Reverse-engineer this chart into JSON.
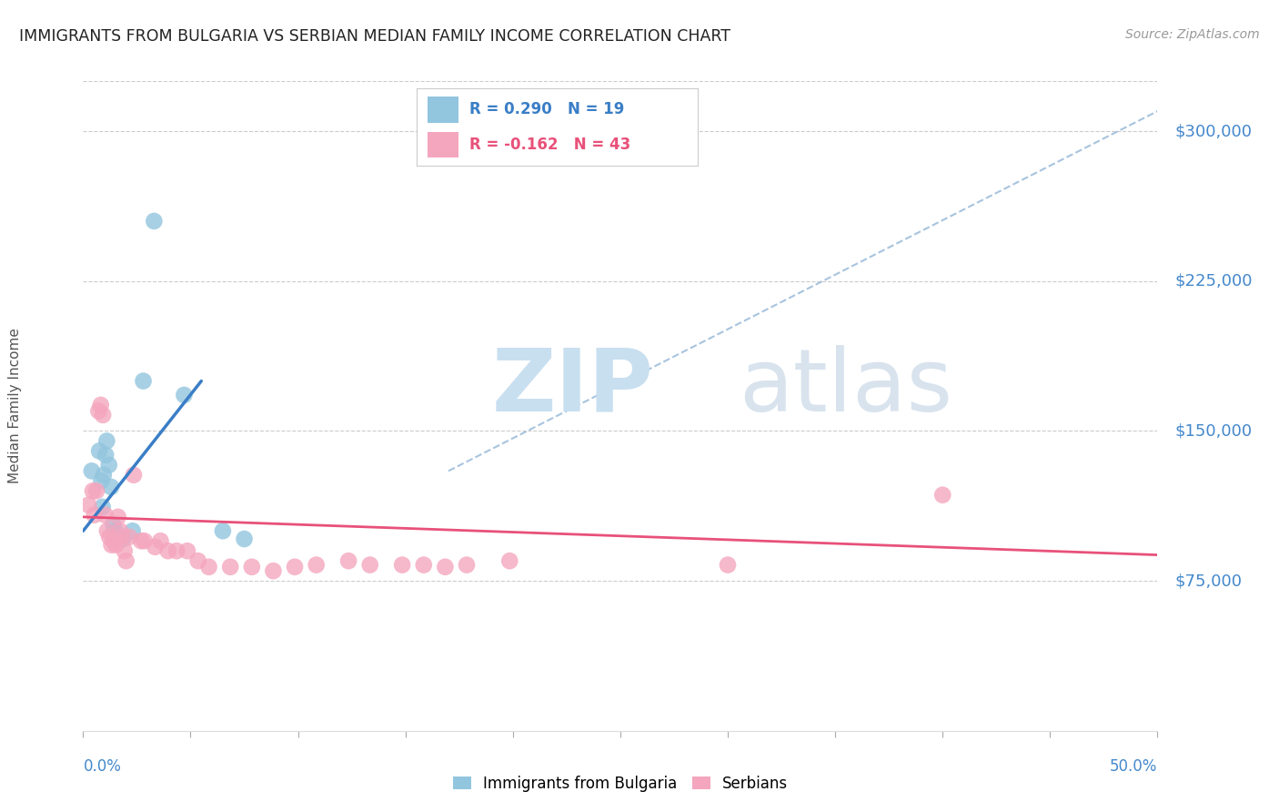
{
  "title": "IMMIGRANTS FROM BULGARIA VS SERBIAN MEDIAN FAMILY INCOME CORRELATION CHART",
  "source": "Source: ZipAtlas.com",
  "ylabel": "Median Family Income",
  "yticks": [
    75000,
    150000,
    225000,
    300000
  ],
  "ytick_labels": [
    "$75,000",
    "$150,000",
    "$225,000",
    "$300,000"
  ],
  "xmin": 0.0,
  "xmax": 50.0,
  "ymin": 0,
  "ymax": 325000,
  "blue_color": "#92c5de",
  "pink_color": "#f4a6be",
  "blue_trend_color": "#3a7ec6",
  "pink_trend_color": "#e8517a",
  "dash_color": "#a8c4de",
  "blue_scatter": [
    [
      0.4,
      130000
    ],
    [
      0.75,
      140000
    ],
    [
      0.85,
      125000
    ],
    [
      0.95,
      128000
    ],
    [
      1.05,
      138000
    ],
    [
      1.1,
      145000
    ],
    [
      1.2,
      133000
    ],
    [
      1.4,
      103000
    ],
    [
      1.5,
      100000
    ],
    [
      1.65,
      97000
    ],
    [
      1.85,
      96000
    ],
    [
      2.3,
      100000
    ],
    [
      2.8,
      175000
    ],
    [
      4.7,
      168000
    ],
    [
      3.3,
      255000
    ],
    [
      6.5,
      100000
    ],
    [
      7.5,
      96000
    ],
    [
      0.9,
      112000
    ],
    [
      1.3,
      122000
    ]
  ],
  "pink_scatter": [
    [
      0.25,
      113000
    ],
    [
      0.45,
      120000
    ],
    [
      0.52,
      108000
    ],
    [
      0.62,
      120000
    ],
    [
      0.72,
      160000
    ],
    [
      0.82,
      163000
    ],
    [
      0.92,
      158000
    ],
    [
      1.02,
      108000
    ],
    [
      1.12,
      100000
    ],
    [
      1.22,
      97000
    ],
    [
      1.32,
      93000
    ],
    [
      1.42,
      95000
    ],
    [
      1.52,
      93000
    ],
    [
      1.62,
      107000
    ],
    [
      1.72,
      100000
    ],
    [
      1.82,
      97000
    ],
    [
      1.92,
      90000
    ],
    [
      2.0,
      85000
    ],
    [
      2.15,
      97000
    ],
    [
      2.35,
      128000
    ],
    [
      2.7,
      95000
    ],
    [
      2.85,
      95000
    ],
    [
      3.35,
      92000
    ],
    [
      3.6,
      95000
    ],
    [
      3.95,
      90000
    ],
    [
      4.35,
      90000
    ],
    [
      4.85,
      90000
    ],
    [
      5.35,
      85000
    ],
    [
      5.85,
      82000
    ],
    [
      6.85,
      82000
    ],
    [
      7.85,
      82000
    ],
    [
      8.85,
      80000
    ],
    [
      9.85,
      82000
    ],
    [
      10.85,
      83000
    ],
    [
      12.35,
      85000
    ],
    [
      13.35,
      83000
    ],
    [
      14.85,
      83000
    ],
    [
      15.85,
      83000
    ],
    [
      16.85,
      82000
    ],
    [
      17.85,
      83000
    ],
    [
      19.85,
      85000
    ],
    [
      30.0,
      83000
    ],
    [
      40.0,
      118000
    ]
  ],
  "blue_line_x": [
    0.0,
    5.5
  ],
  "blue_line_y": [
    100000,
    175000
  ],
  "pink_line_x": [
    0.0,
    50.0
  ],
  "pink_line_y": [
    107000,
    88000
  ],
  "dash_line_x": [
    17.0,
    50.0
  ],
  "dash_line_y": [
    130000,
    310000
  ]
}
